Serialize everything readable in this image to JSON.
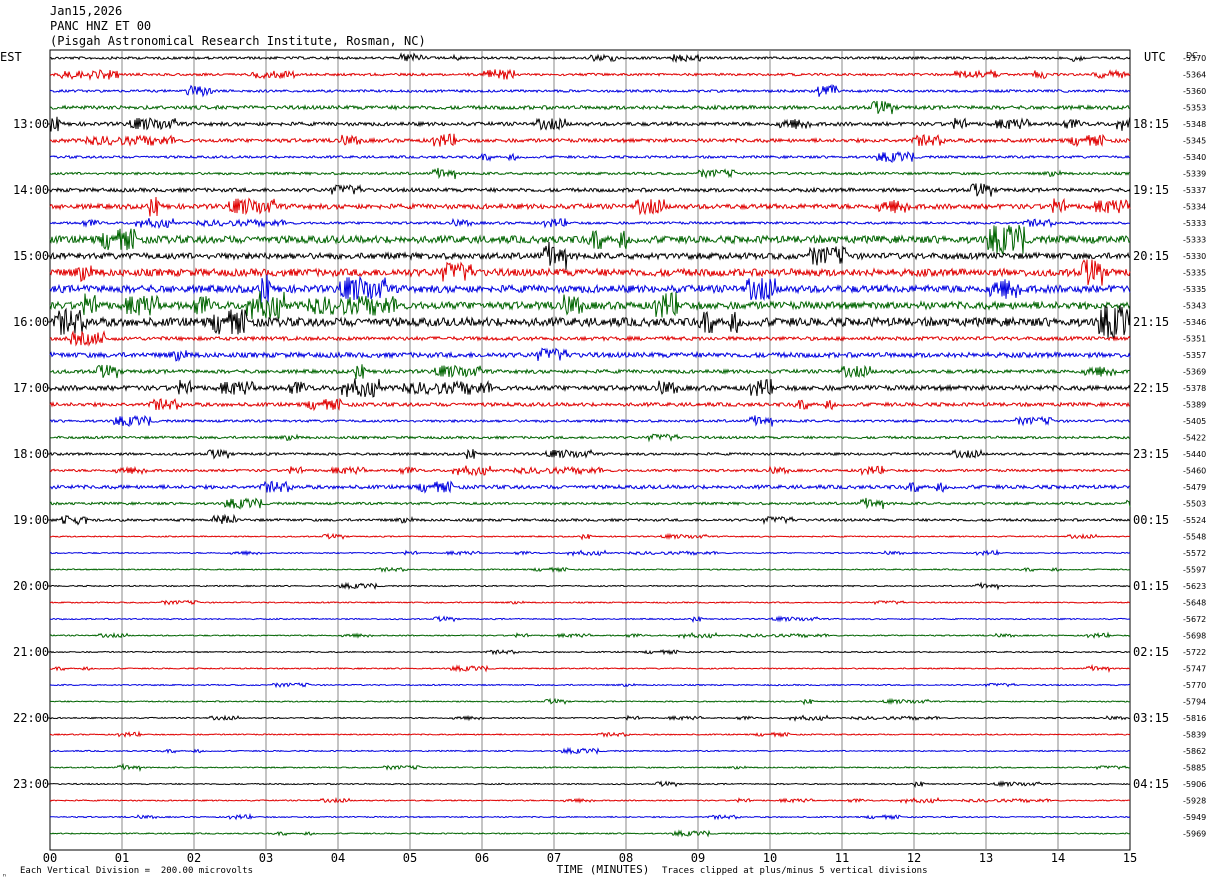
{
  "header": {
    "date": "Jan15,2026",
    "station": "PANC HNZ ET 00",
    "location": "(Pisgah Astronomical Research Institute, Rosman, NC)"
  },
  "chart_data": {
    "type": "line",
    "title": "Jan15,2026 PANC HNZ ET 00",
    "left_axis_label": "EST",
    "right_axis_label": "UTC",
    "dc_label": "DC",
    "xlabel": "TIME (MINUTES)",
    "x_ticks": [
      "00",
      "01",
      "02",
      "03",
      "04",
      "05",
      "06",
      "07",
      "08",
      "09",
      "10",
      "11",
      "12",
      "13",
      "14",
      "15"
    ],
    "xlim": [
      0,
      15
    ],
    "est_labels": [
      "13:00",
      "14:00",
      "15:00",
      "16:00",
      "17:00",
      "18:00",
      "19:00",
      "20:00",
      "21:00",
      "22:00",
      "23:00"
    ],
    "utc_labels": [
      "18:15",
      "19:15",
      "20:15",
      "21:15",
      "22:15",
      "23:15",
      "00:15",
      "01:15",
      "02:15",
      "03:15",
      "04:15"
    ],
    "trace_colors": [
      "#000000",
      "#e00000",
      "#0000e0",
      "#006400"
    ],
    "dc_values": [
      "-5370",
      "-5364",
      "-5360",
      "-5353",
      "-5348",
      "-5345",
      "-5340",
      "-5339",
      "-5337",
      "-5334",
      "-5333",
      "-5333",
      "-5330",
      "-5335",
      "-5335",
      "-5343",
      "-5346",
      "-5351",
      "-5357",
      "-5369",
      "-5378",
      "-5389",
      "-5405",
      "-5422",
      "-5440",
      "-5460",
      "-5479",
      "-5503",
      "-5524",
      "-5548",
      "-5572",
      "-5597",
      "-5623",
      "-5648",
      "-5672",
      "-5698",
      "-5722",
      "-5747",
      "-5770",
      "-5794",
      "-5816",
      "-5839",
      "-5862",
      "-5885",
      "-5906",
      "-5928",
      "-5949",
      "-5969"
    ],
    "trace_amplitude": [
      2,
      2,
      2,
      3,
      3,
      3,
      2,
      2,
      3,
      4,
      2,
      6,
      5,
      6,
      6,
      6,
      7,
      3,
      4,
      3,
      4,
      3,
      2,
      2,
      2,
      2,
      3,
      2,
      2,
      1,
      1,
      1,
      1,
      1,
      1,
      1,
      1,
      1,
      1,
      1,
      1,
      1,
      1,
      1,
      1,
      1,
      1,
      1
    ],
    "grid": true
  },
  "footer": {
    "scale": "Each Vertical Division =  200.00 microvolts",
    "clip": "Traces clipped at plus/minus 5 vertical divisions"
  }
}
